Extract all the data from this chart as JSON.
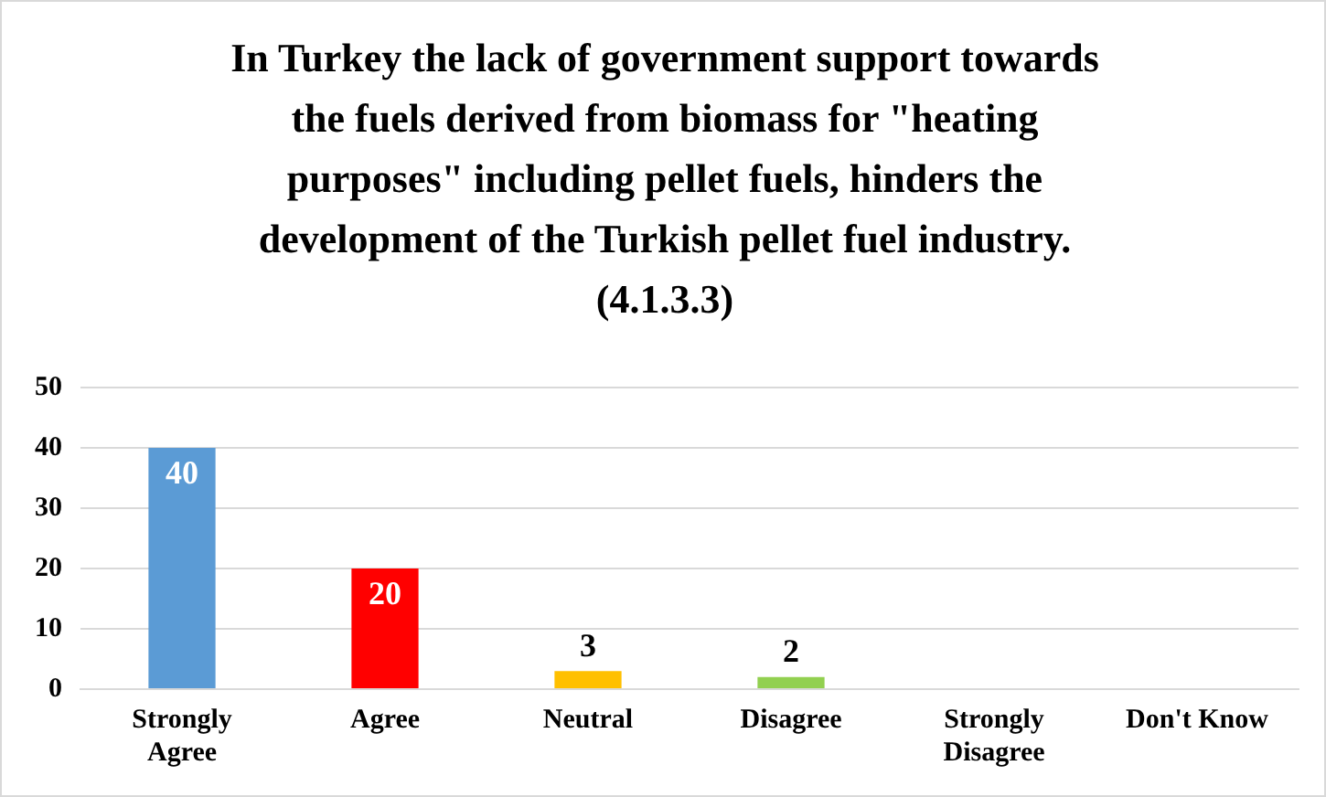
{
  "chart_data": {
    "type": "bar",
    "title": "In Turkey  the lack of government support towards the fuels derived from biomass for \"heating purposes\" including pellet fuels, hinders the development of the Turkish  pellet fuel industry.  (4.1.3.3)",
    "categories": [
      "Strongly Agree",
      "Agree",
      "Neutral",
      "Disagree",
      "Strongly Disagree",
      "Don't Know"
    ],
    "values": [
      40,
      20,
      3,
      2,
      0,
      0
    ],
    "value_labels": [
      "40",
      "20",
      "3",
      "2",
      null,
      null
    ],
    "colors": [
      "#5b9bd5",
      "#ff0000",
      "#ffc000",
      "#92d050",
      "#a5a5a5",
      "#4472c4"
    ],
    "ylim": [
      0,
      50
    ],
    "yticks": [
      0,
      10,
      20,
      30,
      40,
      50
    ],
    "grid": "y",
    "legend": false
  }
}
